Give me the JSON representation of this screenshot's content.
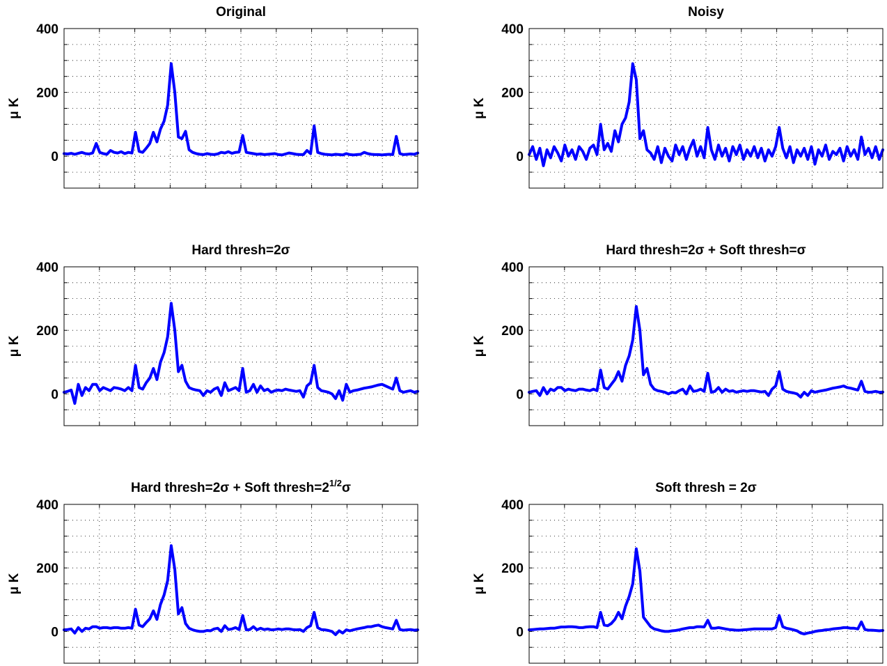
{
  "chart_data": [
    {
      "type": "line",
      "title": "Original",
      "ylabel": "μ K",
      "ylim": [
        -100,
        400
      ],
      "yticks": [
        0,
        200,
        400
      ],
      "grid": true,
      "series": [
        {
          "values": [
            8,
            7,
            9,
            6,
            9,
            12,
            8,
            7,
            10,
            40,
            12,
            8,
            6,
            18,
            12,
            10,
            14,
            8,
            12,
            10,
            75,
            15,
            12,
            25,
            40,
            75,
            45,
            85,
            110,
            160,
            290,
            200,
            60,
            55,
            78,
            20,
            12,
            8,
            6,
            5,
            8,
            6,
            5,
            7,
            12,
            10,
            14,
            9,
            12,
            13,
            65,
            12,
            10,
            8,
            6,
            7,
            5,
            6,
            7,
            8,
            5,
            4,
            7,
            10,
            8,
            6,
            5,
            5,
            18,
            8,
            95,
            12,
            8,
            6,
            5,
            4,
            6,
            5,
            4,
            8,
            5,
            4,
            5,
            6,
            12,
            8,
            6,
            5,
            5,
            4,
            5,
            6,
            5,
            62,
            8,
            5,
            6,
            7,
            6,
            10
          ]
        }
      ]
    },
    {
      "type": "line",
      "title": "Noisy",
      "ylabel": "μ K",
      "ylim": [
        -100,
        400
      ],
      "yticks": [
        0,
        200,
        400
      ],
      "grid": true,
      "series": [
        {
          "values": [
            5,
            30,
            -10,
            25,
            -30,
            20,
            -5,
            30,
            10,
            -15,
            35,
            0,
            20,
            -10,
            30,
            15,
            -10,
            25,
            35,
            5,
            100,
            20,
            40,
            15,
            80,
            45,
            100,
            120,
            170,
            290,
            240,
            55,
            80,
            20,
            10,
            -10,
            30,
            -20,
            25,
            0,
            -15,
            35,
            5,
            30,
            -10,
            25,
            50,
            0,
            30,
            -5,
            90,
            20,
            -10,
            35,
            0,
            25,
            -15,
            30,
            5,
            35,
            -10,
            20,
            0,
            30,
            -5,
            25,
            -15,
            20,
            0,
            30,
            90,
            25,
            -5,
            30,
            -20,
            20,
            0,
            25,
            -10,
            30,
            -25,
            20,
            0,
            35,
            -10,
            15,
            5,
            25,
            -15,
            30,
            0,
            20,
            -10,
            60,
            5,
            25,
            -5,
            30,
            -10,
            20
          ]
        }
      ]
    },
    {
      "type": "line",
      "title": "Hard thresh=2σ",
      "ylabel": "μ K",
      "ylim": [
        -100,
        400
      ],
      "yticks": [
        0,
        200,
        400
      ],
      "grid": true,
      "series": [
        {
          "values": [
            5,
            8,
            12,
            -30,
            30,
            -5,
            20,
            10,
            30,
            30,
            10,
            20,
            15,
            10,
            20,
            18,
            15,
            10,
            20,
            10,
            90,
            20,
            15,
            35,
            50,
            80,
            45,
            100,
            130,
            180,
            285,
            200,
            70,
            90,
            40,
            20,
            15,
            12,
            10,
            -5,
            10,
            5,
            15,
            20,
            -5,
            35,
            10,
            15,
            20,
            10,
            80,
            5,
            10,
            30,
            5,
            25,
            10,
            15,
            5,
            10,
            12,
            10,
            15,
            12,
            10,
            8,
            10,
            -10,
            25,
            35,
            90,
            20,
            10,
            8,
            5,
            0,
            -15,
            10,
            -20,
            30,
            5,
            10,
            12,
            15,
            18,
            20,
            22,
            25,
            28,
            30,
            25,
            20,
            15,
            50,
            10,
            5,
            8,
            10,
            5,
            8
          ]
        }
      ]
    },
    {
      "type": "line",
      "title": "Hard thresh=2σ + Soft thresh=σ",
      "ylabel": "μ K",
      "ylim": [
        -100,
        400
      ],
      "yticks": [
        0,
        200,
        400
      ],
      "grid": true,
      "series": [
        {
          "values": [
            5,
            8,
            10,
            -5,
            20,
            0,
            15,
            10,
            20,
            20,
            10,
            15,
            12,
            10,
            15,
            15,
            12,
            10,
            15,
            10,
            75,
            20,
            15,
            30,
            45,
            70,
            40,
            90,
            120,
            170,
            275,
            200,
            60,
            80,
            30,
            15,
            10,
            8,
            5,
            0,
            5,
            3,
            10,
            15,
            0,
            25,
            8,
            10,
            15,
            8,
            65,
            5,
            8,
            20,
            5,
            15,
            8,
            10,
            5,
            8,
            10,
            8,
            10,
            10,
            8,
            6,
            8,
            -5,
            15,
            25,
            70,
            15,
            8,
            5,
            3,
            0,
            -10,
            5,
            -5,
            10,
            5,
            8,
            10,
            12,
            15,
            18,
            20,
            22,
            25,
            20,
            18,
            15,
            12,
            40,
            8,
            5,
            6,
            8,
            5,
            6
          ]
        }
      ]
    },
    {
      "type": "line",
      "title": "Hard thresh=2σ + Soft thresh=2^{1/2}σ",
      "ylabel": "μ K",
      "ylim": [
        -100,
        400
      ],
      "yticks": [
        0,
        200,
        400
      ],
      "grid": true,
      "series": [
        {
          "values": [
            5,
            6,
            8,
            -5,
            12,
            0,
            10,
            8,
            15,
            15,
            10,
            12,
            12,
            10,
            12,
            12,
            10,
            10,
            12,
            10,
            70,
            20,
            15,
            28,
            40,
            65,
            38,
            85,
            115,
            160,
            270,
            195,
            55,
            75,
            25,
            10,
            5,
            2,
            0,
            0,
            3,
            2,
            8,
            10,
            0,
            18,
            6,
            8,
            12,
            6,
            50,
            5,
            6,
            15,
            5,
            10,
            6,
            8,
            5,
            6,
            8,
            6,
            8,
            8,
            6,
            5,
            6,
            0,
            12,
            18,
            60,
            12,
            6,
            5,
            3,
            0,
            -10,
            2,
            -5,
            5,
            2,
            5,
            8,
            10,
            12,
            15,
            15,
            18,
            20,
            15,
            12,
            10,
            8,
            35,
            6,
            4,
            5,
            6,
            4,
            5
          ]
        }
      ]
    },
    {
      "type": "line",
      "title": "Soft thresh  = 2σ",
      "ylabel": "μ K",
      "ylim": [
        -100,
        400
      ],
      "yticks": [
        0,
        200,
        400
      ],
      "grid": true,
      "series": [
        {
          "values": [
            5,
            6,
            7,
            8,
            8,
            9,
            10,
            10,
            12,
            14,
            14,
            15,
            15,
            14,
            12,
            12,
            14,
            15,
            15,
            12,
            60,
            20,
            18,
            25,
            38,
            60,
            40,
            80,
            110,
            150,
            260,
            190,
            45,
            30,
            15,
            8,
            5,
            2,
            0,
            0,
            2,
            3,
            5,
            8,
            10,
            12,
            12,
            15,
            15,
            14,
            35,
            10,
            10,
            12,
            10,
            8,
            6,
            5,
            4,
            4,
            5,
            6,
            7,
            8,
            8,
            8,
            8,
            8,
            8,
            12,
            50,
            15,
            10,
            8,
            5,
            2,
            -5,
            -8,
            -5,
            -3,
            0,
            2,
            3,
            5,
            6,
            8,
            9,
            10,
            12,
            12,
            10,
            10,
            8,
            30,
            6,
            4,
            4,
            3,
            2,
            3
          ]
        }
      ]
    }
  ]
}
